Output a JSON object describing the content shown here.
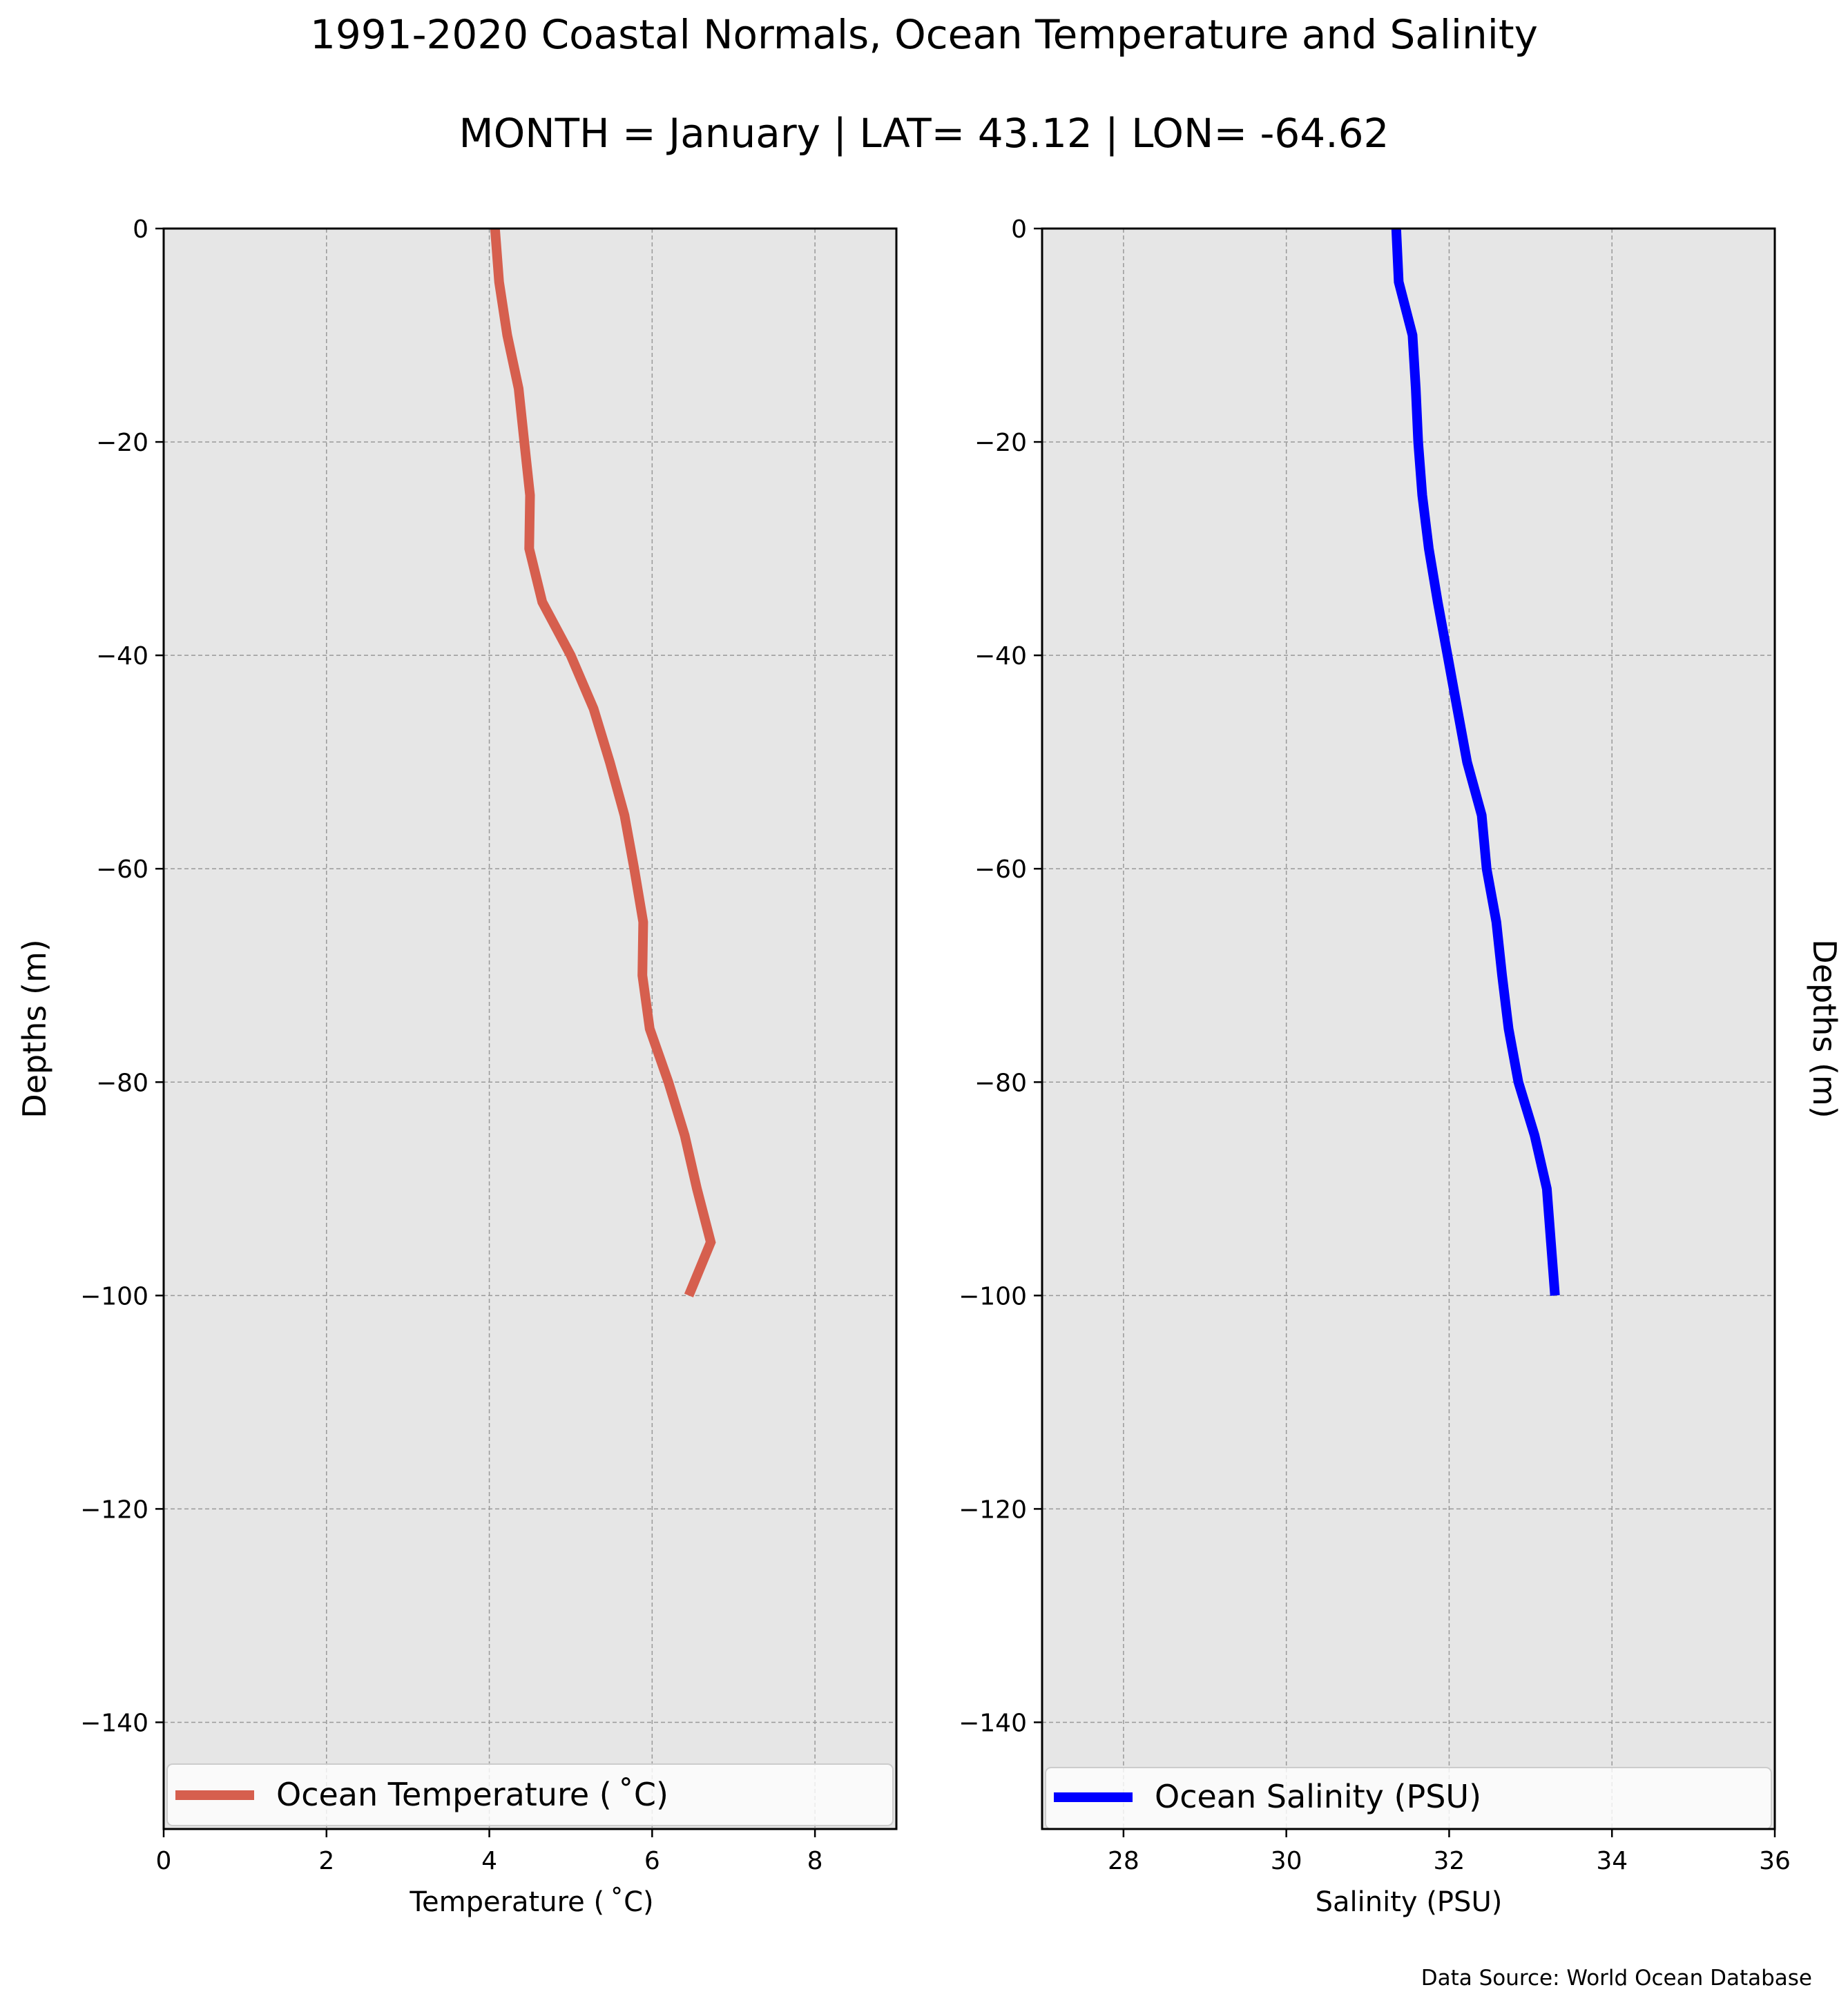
{
  "title": "1991-2020 Coastal Normals, Ocean Temperature and Salinity",
  "subtitle": "MONTH = January | LAT= 43.12 | LON= -64.62",
  "source": "Data Source: World Ocean Database",
  "chart_data": [
    {
      "type": "line",
      "xlabel": "Temperature ($^\\circ$C)",
      "xlabel_display": "Temperature ( ˚C)",
      "ylabel": "Depths (m)",
      "xlim": [
        0,
        9
      ],
      "ylim": [
        -150,
        0
      ],
      "xticks": [
        0,
        2,
        4,
        6,
        8
      ],
      "xtick_labels": [
        "0",
        "2",
        "4",
        "6",
        "8"
      ],
      "yticks": [
        0,
        -20,
        -40,
        -60,
        -80,
        -100,
        -120,
        -140
      ],
      "ytick_labels": [
        "0",
        "−20",
        "−40",
        "−60",
        "−80",
        "−100",
        "−120",
        "−140"
      ],
      "grid": true,
      "legend": "lower-center",
      "background": "#e6e6e6",
      "series": [
        {
          "name": "Ocean Temperature ( ˚C)",
          "color": "#d65f4e",
          "x": [
            4.07,
            4.12,
            4.22,
            4.36,
            4.43,
            4.5,
            4.49,
            4.65,
            5.0,
            5.28,
            5.48,
            5.66,
            5.78,
            5.89,
            5.88,
            5.97,
            6.2,
            6.4,
            6.55,
            6.72,
            6.45
          ],
          "y": [
            0,
            -5,
            -10,
            -15,
            -20,
            -25,
            -30,
            -35,
            -40,
            -45,
            -50,
            -55,
            -60,
            -65,
            -70,
            -75,
            -80,
            -85,
            -90,
            -95,
            -100
          ]
        }
      ]
    },
    {
      "type": "line",
      "xlabel": "Salinity (PSU)",
      "ylabel": "Depths (m)",
      "ylabel_position": "right",
      "xlim": [
        27,
        36
      ],
      "ylim": [
        -150,
        0
      ],
      "xticks": [
        28,
        30,
        32,
        34,
        36
      ],
      "xtick_labels": [
        "28",
        "30",
        "32",
        "34",
        "36"
      ],
      "yticks": [
        0,
        -20,
        -40,
        -60,
        -80,
        -100,
        -120,
        -140
      ],
      "ytick_labels": [
        "0",
        "−20",
        "−40",
        "−60",
        "−80",
        "−100",
        "−120",
        "−140"
      ],
      "grid": true,
      "legend": "lower-center",
      "background": "#e6e6e6",
      "series": [
        {
          "name": "Ocean Salinity (PSU)",
          "color": "#0000ff",
          "x": [
            31.35,
            31.38,
            31.55,
            31.59,
            31.62,
            31.67,
            31.75,
            31.86,
            31.98,
            32.1,
            32.22,
            32.4,
            32.46,
            32.58,
            32.65,
            32.73,
            32.85,
            33.05,
            33.2,
            33.25,
            33.3
          ],
          "y": [
            0,
            -5,
            -10,
            -15,
            -20,
            -25,
            -30,
            -35,
            -40,
            -45,
            -50,
            -55,
            -60,
            -65,
            -70,
            -75,
            -80,
            -85,
            -90,
            -95,
            -100
          ]
        }
      ]
    }
  ]
}
